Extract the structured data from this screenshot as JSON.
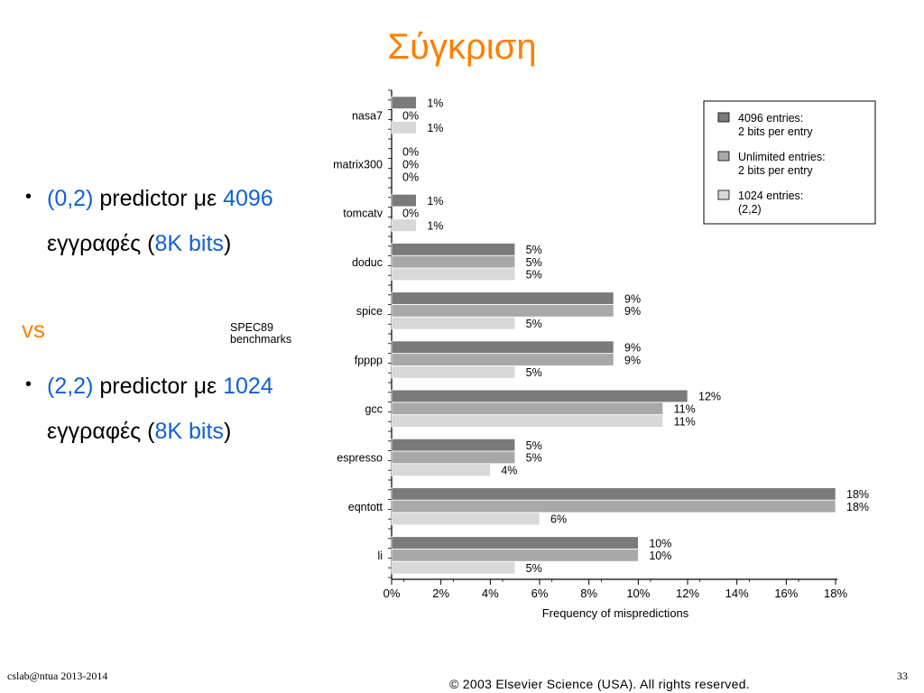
{
  "title": "Σύγκριση",
  "bullets": [
    {
      "hl_a": "(0,2)",
      "text_a": " predictor με ",
      "hl_b": "4096",
      "text_b": " εγγραφές (",
      "hl_c": "8K bits",
      "text_c": ")"
    },
    {
      "hl_a": "(2,2)",
      "text_a": " predictor με ",
      "hl_b": "1024",
      "text_b": " εγγραφές (",
      "hl_c": "8K bits",
      "text_c": ")"
    }
  ],
  "vs": "vs",
  "footer": {
    "left": "cslab@ntua 2013-2014",
    "page": "33",
    "copyright": "© 2003 Elsevier Science (USA). All rights reserved."
  },
  "colors": {
    "title": "#ff7f00",
    "highlight": "#1060d8",
    "series_dark": "#7a7a7a",
    "series_mid": "#a8a8a8",
    "series_light": "#d8d8d8"
  },
  "chart_data": {
    "type": "bar",
    "orientation": "horizontal",
    "group_label": [
      "SPEC89",
      "benchmarks"
    ],
    "categories": [
      "nasa7",
      "matrix300",
      "tomcatv",
      "doduc",
      "spice",
      "fpppp",
      "gcc",
      "espresso",
      "eqntott",
      "li"
    ],
    "series": [
      {
        "name_lines": [
          "4096 entries:",
          "2 bits per entry"
        ],
        "color": "#7a7a7a",
        "values": [
          1,
          0,
          1,
          5,
          9,
          9,
          12,
          5,
          18,
          10
        ]
      },
      {
        "name_lines": [
          "Unlimited entries:",
          "2 bits per entry"
        ],
        "color": "#a8a8a8",
        "values": [
          0,
          0,
          0,
          5,
          9,
          9,
          11,
          5,
          18,
          10
        ]
      },
      {
        "name_lines": [
          "1024 entries:",
          "(2,2)"
        ],
        "color": "#d8d8d8",
        "values": [
          1,
          0,
          1,
          5,
          5,
          5,
          11,
          4,
          6,
          5
        ]
      }
    ],
    "xlabel": "Frequency of mispredictions",
    "xticks": [
      "0%",
      "2%",
      "4%",
      "6%",
      "8%",
      "10%",
      "12%",
      "14%",
      "16%",
      "18%"
    ],
    "xlim": [
      0,
      18
    ],
    "value_suffix": "%",
    "grid": false,
    "legend_position": "top-right"
  }
}
